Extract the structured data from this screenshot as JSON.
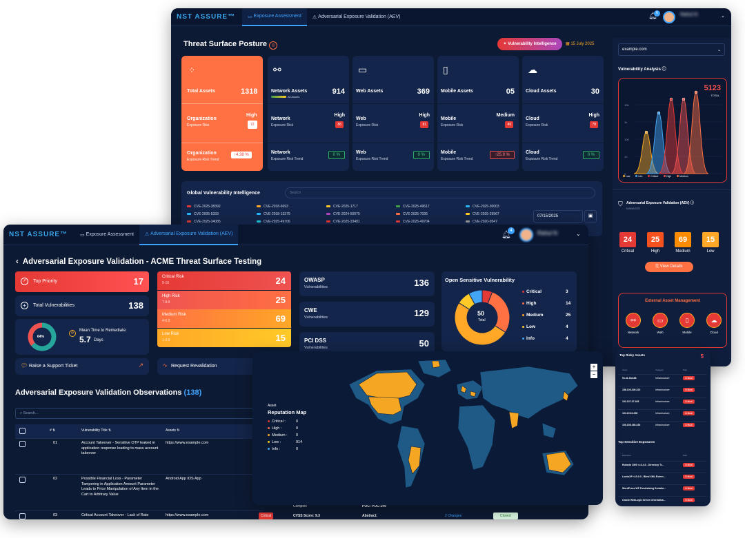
{
  "back": {
    "logo": "NST ASSURE™",
    "tabs": [
      "Exposure Assessment",
      "Adversarial Exposure Validation (AEV)"
    ],
    "notif_count": "6",
    "user_name": "Rahul N",
    "page_title": "Threat Surface Posture",
    "vi_button": "Vulnerability Intelligence",
    "date": "15 July 2025",
    "total_assets": {
      "label": "Total Assets",
      "value": "1318"
    },
    "org_risk": {
      "label": "Organization",
      "sub": "Exposure Risk",
      "level": "High",
      "score": "72"
    },
    "org_trend": {
      "label": "Organization",
      "sub": "Exposure Risk Trend",
      "value": "4.38 %"
    },
    "assets": [
      {
        "name": "Network Assets",
        "count": "914",
        "extra": "All Assets",
        "risk_label": "Network",
        "level": "High",
        "score": "86",
        "trend_label": "Network",
        "trend": "0 %",
        "trend_up": false
      },
      {
        "name": "Web Assets",
        "count": "369",
        "extra": "",
        "risk_label": "Web",
        "level": "High",
        "score": "81",
        "trend_label": "Web",
        "trend": "0 %",
        "trend_up": false
      },
      {
        "name": "Mobile Assets",
        "count": "05",
        "extra": "",
        "risk_label": "Mobile",
        "level": "Medium",
        "score": "49",
        "trend_label": "Mobile",
        "trend": "25.9 %",
        "trend_up": true
      },
      {
        "name": "Cloud Assets",
        "count": "30",
        "extra": "",
        "risk_label": "Cloud",
        "level": "High",
        "score": "78",
        "trend_label": "Cloud",
        "trend": "0 %",
        "trend_up": false
      }
    ],
    "exposure_risk_sub": "Exposure Risk",
    "exposure_trend_sub": "Exposure Risk Trend",
    "gvi_title": "Global Vulnerability Intelligence",
    "gvi_search": "Search",
    "cves": [
      "CVE-2025-38392",
      "CVE-2018-6693",
      "CVE-2025-1717",
      "CVE-2025-49617",
      "CVE-2025-30003",
      "CVE-2005-5333",
      "CVE-2018-13379",
      "CVE-2024-50079",
      "CVE-2025-7036",
      "CVE-2025-29967",
      "CVE-2025-34085",
      "CVE-2025-49706",
      "CVE-2025-33481",
      "CVE-2025-49704",
      "CVE-2020-9547"
    ],
    "cve_colors": [
      "#e53935",
      "#ffa726",
      "#ffca28",
      "#43a047",
      "#29b6f6",
      "#29b6f6",
      "#29b6f6",
      "#ab47bc",
      "#ff7043",
      "#ffca28",
      "#e53935",
      "#26c6da",
      "#e53935",
      "#e53935",
      "#9e9e9e"
    ],
    "gvi_date": "07/15/2025",
    "domain_select": "example.com",
    "vuln_analysis": "Vulnerability Analysis",
    "vuln_total": "5123",
    "vuln_total_label": "TOTAL",
    "vuln_axis": [
      "10k",
      "1k",
      "100",
      "10",
      "0"
    ],
    "vuln_legend": [
      "Low",
      "Info",
      "Critical",
      "High",
      "Medium"
    ],
    "aev_title": "Adversarial Exposure Validation (AEV)",
    "aev_managed": "MANAGED",
    "aev_boxes": [
      {
        "value": "24",
        "label": "Critical",
        "color": "#e53935"
      },
      {
        "value": "25",
        "label": "High",
        "color": "#f4511e"
      },
      {
        "value": "69",
        "label": "Medium",
        "color": "#fb8c00"
      },
      {
        "value": "15",
        "label": "Low",
        "color": "#ffa726"
      }
    ],
    "view_details": "View Details",
    "eam_title": "External Asset Management",
    "eam_items": [
      "Network",
      "Web",
      "Mobile",
      "Cloud"
    ]
  },
  "mid": {
    "title": "Top Risky Assets",
    "headers": [
      "Asset",
      "Category",
      "Risk"
    ],
    "count_label": "5",
    "rows": [
      {
        "asset": "91.31.184.68",
        "cat": "Infrastructure",
        "risk": "Critical"
      },
      {
        "asset": "156.100.200.220",
        "cat": "Infrastructure",
        "risk": "Critical"
      },
      {
        "asset": "102.107.37.165",
        "cat": "Infrastructure",
        "risk": "Critical"
      },
      {
        "asset": "104.10.61.230",
        "cat": "Infrastructure",
        "risk": "Critical"
      },
      {
        "asset": "100.155.160.226",
        "cat": "Infrastructure",
        "risk": "Critical"
      }
    ],
    "title2": "Top Sensitive Exposures",
    "headers2": [
      "Exposure",
      "Risk"
    ],
    "rows2": [
      {
        "name": "Rubedo CMS <=3.4.0 - Directory Tr...",
        "risk": "Critical"
      },
      {
        "name": "LumisXP <10.0.0 - Blind XML Extern...",
        "risk": "Critical"
      },
      {
        "name": "WordPress WP Fundraising Donatio...",
        "risk": "Critical"
      },
      {
        "name": "Oracle WebLogic Server Deserializa...",
        "risk": "Critical"
      }
    ]
  },
  "front": {
    "logo": "NST ASSURE™",
    "tabs": [
      "Exposure Assessment",
      "Adversarial Exposure Validation (AEV)"
    ],
    "notif_count": "4",
    "user_name": "Rahul N",
    "title": "Adversarial Exposure Validation - ACME Threat Surface Testing",
    "top_priority": {
      "label": "Top Priority",
      "value": "17"
    },
    "total_vuln": {
      "label": "Total Vulnerabilities",
      "value": "138"
    },
    "donut_pct": "64%",
    "mttr_label": "Mean Time to Remediate:",
    "mttr_value": "5.7",
    "mttr_unit": "Days",
    "support": "Raise a Support Ticket",
    "reval": "Request Revalidation",
    "risks": [
      {
        "label": "Critical Risk",
        "range": "9-10",
        "value": "24"
      },
      {
        "label": "High Risk",
        "range": "7-8.9",
        "value": "25"
      },
      {
        "label": "Medium Risk",
        "range": "4-6.9",
        "value": "69"
      },
      {
        "label": "Low Risk",
        "range": "1-3.9",
        "value": "15"
      }
    ],
    "frameworks": [
      {
        "name": "OWASP",
        "sub": "Vulnerabilities",
        "value": "136"
      },
      {
        "name": "CWE",
        "sub": "Vulnerabilities",
        "value": "129"
      },
      {
        "name": "PCI DSS",
        "sub": "Vulnerabilities",
        "value": "50"
      }
    ],
    "osv_title": "Open Sensitive Vulnerability",
    "osv_total": "50",
    "osv_total_label": "Total",
    "osv_legend": [
      {
        "label": "Critical",
        "value": "3",
        "color": "#e53935"
      },
      {
        "label": "High",
        "value": "14",
        "color": "#ff7043"
      },
      {
        "label": "Medium",
        "value": "25",
        "color": "#ffa726"
      },
      {
        "label": "Low",
        "value": "4",
        "color": "#ffca28"
      },
      {
        "label": "Info",
        "value": "4",
        "color": "#42a5f5"
      }
    ],
    "obs_title": "Adversarial Exposure Validation Observations",
    "obs_count": "(138)",
    "search": "Search...",
    "headers": [
      "#",
      "Vulnerability Title",
      "Assets"
    ],
    "rows": [
      {
        "no": "01",
        "title": "Account Takeover - Sensitive OTP leaked in application response leading to mass account takeover",
        "asset": "https://www.example.com"
      },
      {
        "no": "02",
        "title": "Possible Financial Loss - Parameter Tampering in Application Amount Parameter Leads to Price Manipulation of Any Item in the Cart to Arbitrary Value",
        "asset": "Android App iOS App"
      },
      {
        "no": "03",
        "title": "Critical Account Takeover - Lack of Rate",
        "asset": "https://www.example.com"
      }
    ],
    "peek": {
      "complex": "Complex",
      "poc": "POC: POC-149",
      "cvss": "CVSS Score: 9.3",
      "abstract": "Abstract:",
      "changes": "2 Changes",
      "status": "Closed",
      "badge": "Critical"
    }
  },
  "map": {
    "title_sub": "Asset",
    "title": "Reputation Map",
    "legend": [
      {
        "label": "Critical :",
        "value": "0",
        "color": "#e53935"
      },
      {
        "label": "High :",
        "value": "0",
        "color": "#ff7043"
      },
      {
        "label": "Medium :",
        "value": "0",
        "color": "#ffa726"
      },
      {
        "label": "Low :",
        "value": "914",
        "color": "#ffca28"
      },
      {
        "label": "Info :",
        "value": "0",
        "color": "#42a5f5"
      }
    ],
    "zoom_in": "+",
    "zoom_out": "−"
  }
}
